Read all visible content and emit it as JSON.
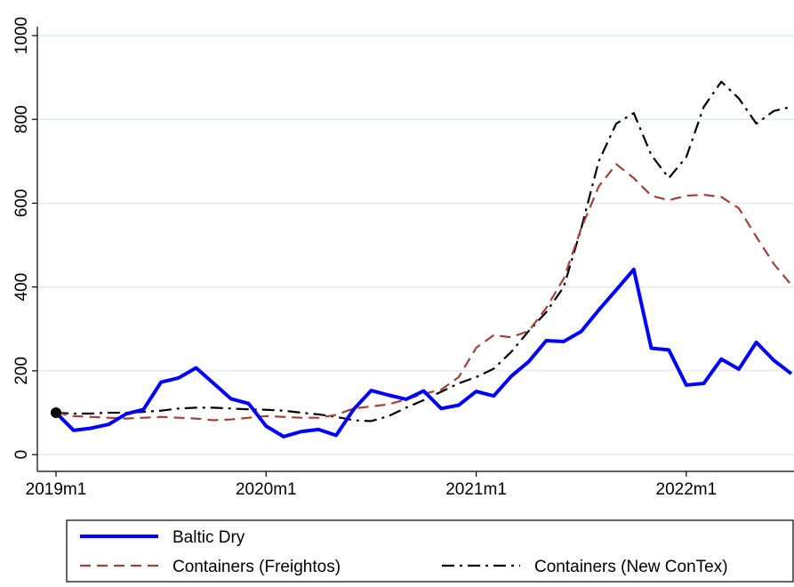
{
  "chart_data": {
    "type": "line",
    "categories": [
      "2019m1",
      null,
      null,
      null,
      null,
      null,
      null,
      null,
      null,
      null,
      null,
      null,
      "2020m1",
      null,
      null,
      null,
      null,
      null,
      null,
      null,
      null,
      null,
      null,
      null,
      "2021m1",
      null,
      null,
      null,
      null,
      null,
      null,
      null,
      null,
      null,
      null,
      null,
      "2022m1",
      null,
      null,
      null,
      null,
      null,
      null
    ],
    "series": [
      {
        "name": "Baltic Dry",
        "color": "#0000ff",
        "style": "solid",
        "width": 4,
        "values": [
          100,
          58,
          63,
          72,
          97,
          108,
          173,
          183,
          207,
          170,
          133,
          122,
          68,
          43,
          55,
          60,
          46,
          108,
          153,
          142,
          132,
          152,
          110,
          118,
          151,
          140,
          187,
          222,
          272,
          270,
          294,
          345,
          393,
          442,
          254,
          250,
          166,
          170,
          228,
          204,
          268,
          225,
          193
        ]
      },
      {
        "name": "Containers (Freightos)",
        "color": "#a0413c",
        "style": "dash",
        "width": 2.2,
        "values": [
          100,
          92,
          90,
          88,
          86,
          88,
          90,
          88,
          86,
          82,
          84,
          88,
          92,
          90,
          88,
          88,
          95,
          110,
          115,
          120,
          132,
          145,
          155,
          185,
          255,
          285,
          280,
          295,
          350,
          420,
          540,
          640,
          693,
          660,
          618,
          607,
          618,
          620,
          615,
          588,
          520,
          455,
          405
        ]
      },
      {
        "name": "Containers (New ConTex)",
        "color": "#000000",
        "style": "dashdot",
        "width": 2.2,
        "values": [
          100,
          98,
          98,
          100,
          100,
          102,
          105,
          110,
          112,
          112,
          110,
          108,
          107,
          105,
          100,
          96,
          90,
          82,
          80,
          92,
          112,
          130,
          150,
          170,
          185,
          205,
          245,
          295,
          340,
          400,
          540,
          700,
          790,
          815,
          715,
          660,
          710,
          830,
          890,
          850,
          790,
          820,
          830
        ]
      }
    ],
    "ylim": [
      -40,
      1000
    ],
    "yticks": [
      0,
      200,
      400,
      600,
      800,
      1000
    ],
    "grid": true,
    "legend": "bottom"
  }
}
